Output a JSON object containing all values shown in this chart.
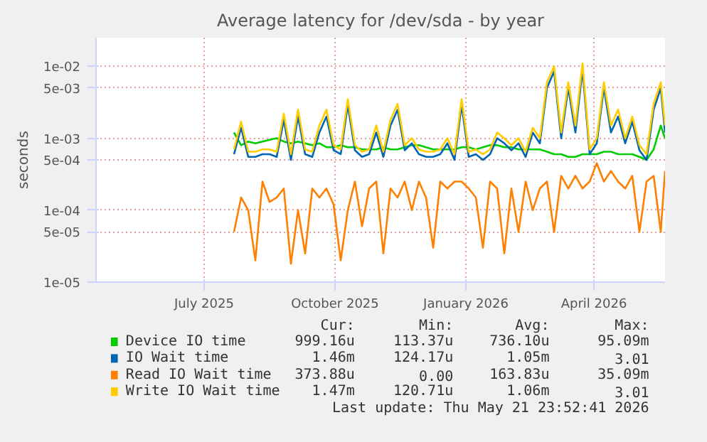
{
  "chart_data": {
    "type": "line",
    "title": "Average latency for /dev/sda - by year",
    "ylabel": "seconds",
    "log": "y",
    "grid": true,
    "legend": "bottom",
    "line_style": "solid",
    "xlim": [
      "2025-04-16",
      "2026-05-21"
    ],
    "xticks": [
      {
        "value": "2025-07-01",
        "label": "July 2025"
      },
      {
        "value": "2025-10-01",
        "label": "October 2025"
      },
      {
        "value": "2026-01-01",
        "label": "January 2026"
      },
      {
        "value": "2026-04-01",
        "label": "April 2026"
      }
    ],
    "ylim": [
      1e-05,
      0.025
    ],
    "yticks": [
      {
        "value": 1e-05,
        "label": "1e-05"
      },
      {
        "value": 5e-05,
        "label": "5e-05"
      },
      {
        "value": 0.0001,
        "label": "1e-04"
      },
      {
        "value": 0.0005,
        "label": "5e-04"
      },
      {
        "value": 0.001,
        "label": "1e-03"
      },
      {
        "value": 0.005,
        "label": "5e-03"
      },
      {
        "value": 0.01,
        "label": "1e-02"
      }
    ],
    "x": [
      "2025-07-22",
      "2025-07-27",
      "2025-08-01",
      "2025-08-06",
      "2025-08-11",
      "2025-08-16",
      "2025-08-21",
      "2025-08-26",
      "2025-08-31",
      "2025-09-05",
      "2025-09-10",
      "2025-09-15",
      "2025-09-20",
      "2025-09-25",
      "2025-09-30",
      "2025-10-05",
      "2025-10-10",
      "2025-10-15",
      "2025-10-20",
      "2025-10-25",
      "2025-10-30",
      "2025-11-04",
      "2025-11-09",
      "2025-11-14",
      "2025-11-19",
      "2025-11-24",
      "2025-11-29",
      "2025-12-04",
      "2025-12-09",
      "2025-12-14",
      "2025-12-19",
      "2025-12-24",
      "2025-12-29",
      "2026-01-03",
      "2026-01-08",
      "2026-01-13",
      "2026-01-18",
      "2026-01-23",
      "2026-01-28",
      "2026-02-02",
      "2026-02-07",
      "2026-02-12",
      "2026-02-17",
      "2026-02-22",
      "2026-02-27",
      "2026-03-04",
      "2026-03-09",
      "2026-03-14",
      "2026-03-19",
      "2026-03-24",
      "2026-03-29",
      "2026-04-03",
      "2026-04-08",
      "2026-04-13",
      "2026-04-18",
      "2026-04-23",
      "2026-04-28",
      "2026-05-03",
      "2026-05-08",
      "2026-05-13",
      "2026-05-18",
      "2026-05-21"
    ],
    "series": [
      {
        "name": "Device IO time",
        "color": "#00cc00",
        "values": [
          0.0012,
          0.0008,
          0.0009,
          0.00085,
          0.0009,
          0.00095,
          0.001,
          0.0009,
          0.00085,
          0.0009,
          0.00085,
          0.0008,
          0.00085,
          0.00075,
          0.00075,
          0.0008,
          0.00075,
          0.00075,
          0.0007,
          0.0007,
          0.0007,
          0.00075,
          0.0007,
          0.0007,
          0.00075,
          0.0008,
          0.0008,
          0.00075,
          0.0007,
          0.0007,
          0.0007,
          0.0007,
          0.00075,
          0.00075,
          0.0007,
          0.00075,
          0.0008,
          0.0008,
          0.00075,
          0.00075,
          0.0007,
          0.0007,
          0.0007,
          0.0007,
          0.00065,
          0.0006,
          0.0006,
          0.00055,
          0.00055,
          0.0006,
          0.0006,
          0.0006,
          0.00065,
          0.00065,
          0.0006,
          0.0006,
          0.0006,
          0.00055,
          0.0005,
          0.0007,
          0.0015,
          0.001
        ]
      },
      {
        "name": "IO Wait time",
        "color": "#0066b3",
        "values": [
          0.0006,
          0.0014,
          0.00055,
          0.00055,
          0.0006,
          0.0006,
          0.00055,
          0.0018,
          0.0005,
          0.002,
          0.0006,
          0.00055,
          0.0012,
          0.002,
          0.00068,
          0.0006,
          0.0029,
          0.00068,
          0.00055,
          0.0006,
          0.0012,
          0.00055,
          0.0015,
          0.0025,
          0.00068,
          0.00085,
          0.0006,
          0.00055,
          0.00055,
          0.0006,
          0.00085,
          0.0005,
          0.0029,
          0.00055,
          0.0006,
          0.0005,
          0.0006,
          0.001,
          0.00085,
          0.00068,
          0.00085,
          0.00055,
          0.0012,
          0.00085,
          0.005,
          0.0085,
          0.001,
          0.005,
          0.0012,
          0.009,
          0.0006,
          0.00085,
          0.005,
          0.0012,
          0.002,
          0.00085,
          0.0017,
          0.00068,
          0.0005,
          0.0025,
          0.005,
          0.0012
        ]
      },
      {
        "name": "Read IO Wait time",
        "color": "#ff8000",
        "values": [
          5e-05,
          0.00015,
          0.0001,
          2e-05,
          0.00025,
          0.00013,
          0.00015,
          0.0002,
          1.8e-05,
          0.0001,
          2.5e-05,
          0.0002,
          0.00015,
          0.0002,
          0.00012,
          2e-05,
          0.0001,
          0.00025,
          6e-05,
          0.0002,
          0.00025,
          2.5e-05,
          0.0002,
          0.00015,
          0.00025,
          0.0001,
          0.00025,
          0.00015,
          3e-05,
          0.00025,
          0.0002,
          0.00025,
          0.00025,
          0.0002,
          0.00015,
          3e-05,
          0.00025,
          0.0002,
          2.5e-05,
          0.0002,
          5e-05,
          0.00025,
          0.0001,
          0.0002,
          0.00025,
          5e-05,
          0.0003,
          0.0002,
          0.0003,
          0.0002,
          0.00025,
          0.00045,
          0.00025,
          0.00035,
          0.00025,
          0.0002,
          0.0003,
          5e-05,
          0.00025,
          0.0003,
          5e-05,
          0.00035
        ]
      },
      {
        "name": "Write IO Wait time",
        "color": "#ffcc00",
        "values": [
          0.0007,
          0.0017,
          0.00065,
          0.00065,
          0.0007,
          0.0007,
          0.00065,
          0.0022,
          0.0006,
          0.0025,
          0.0007,
          0.00065,
          0.0015,
          0.0025,
          0.0008,
          0.0007,
          0.0035,
          0.0008,
          0.00065,
          0.0007,
          0.0015,
          0.00065,
          0.0018,
          0.003,
          0.0008,
          0.001,
          0.0007,
          0.00065,
          0.00065,
          0.0007,
          0.001,
          0.0006,
          0.0035,
          0.00065,
          0.0007,
          0.0006,
          0.0007,
          0.0012,
          0.001,
          0.0008,
          0.001,
          0.00065,
          0.0014,
          0.001,
          0.006,
          0.01,
          0.0012,
          0.006,
          0.0015,
          0.011,
          0.0007,
          0.001,
          0.006,
          0.0015,
          0.0025,
          0.001,
          0.002,
          0.0008,
          0.0006,
          0.003,
          0.006,
          0.0015
        ]
      }
    ],
    "annotations": [
      "Cur:",
      "Min:",
      "Avg:",
      "Max:",
      "999.16u",
      "113.37u",
      "736.10u",
      "95.09m",
      "1.46m",
      "124.17u",
      "1.05m",
      "3.01",
      "373.88u",
      "0.00",
      "163.83u",
      "35.09m",
      "1.47m",
      "120.71u",
      "1.06m",
      "3.01",
      "Last update: Thu May 21 23:52:41 2026"
    ]
  }
}
